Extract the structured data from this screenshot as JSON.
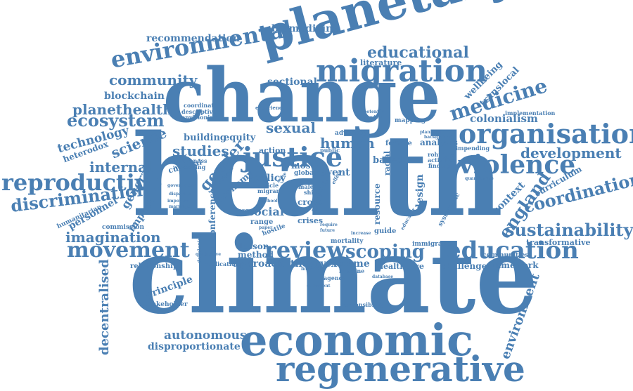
{
  "style": {
    "word_color": "#4a7fb3",
    "background": "#ffffff"
  },
  "words": {
    "climate": "climate",
    "health": "health",
    "change": "change",
    "planetary": "planetary",
    "economic": "economic",
    "regenerative": "regenerative",
    "migration": "migration",
    "organisation": "organisation",
    "justice": "justice",
    "violence": "violence",
    "review": "review",
    "education": "education",
    "scoping": "scoping",
    "movement": "movement",
    "sustainability": "sustainability",
    "reproductive": "reproductive",
    "environmental": "environmental",
    "discrimination": "discrimination",
    "ecosystem": "ecosystem",
    "medicine": "medicine",
    "development": "development",
    "coordination": "coordination",
    "educational": "educational",
    "england": "england",
    "community": "community",
    "planethealth": "planethealth",
    "imagination": "imagination",
    "studies": "studies",
    "gender": "gender",
    "sexual": "sexual",
    "human": "human",
    "internal": "internal",
    "science": "science",
    "technology": "technology",
    "environment": "environment",
    "decentralised": "decentralised",
    "autonomous": "autonomous",
    "disproportionate": "disproportionate",
    "recommendation": "recommendation",
    "biomedicine": "biomedicine",
    "blockchain": "blockchain",
    "sectional": "sectional",
    "literature": "literature",
    "wellbeing": "wellbeing",
    "translocal": "translocal",
    "colonialism": "colonialism",
    "heterodox": "heterodox",
    "general": "general",
    "personnel": "personnel",
    "impact": "impact",
    "humanitarian": "humanitarian",
    "commission": "commission",
    "context": "context",
    "curriculum": "curriculum",
    "transformative": "transformative",
    "framework": "framework",
    "challenge": "challenge",
    "healthcare": "healthcare",
    "extreme": "extreme",
    "approach": "approach",
    "theory": "theory",
    "lesson": "lesson",
    "method": "method",
    "relationship": "relationship",
    "principle": "principle",
    "stakeholder": "stakeholder",
    "unconference": "unconference",
    "economy": "economy",
    "policy": "policy",
    "social": "social",
    "building": "building",
    "equity": "equity",
    "event": "event",
    "based": "based",
    "female": "female",
    "analysis": "analysis",
    "mapping": "mapping",
    "design": "design",
    "resource": "resource",
    "guide": "guide",
    "immigration": "immigration",
    "communities": "communities",
    "mortality": "mortality",
    "cultural": "cultural",
    "action": "action",
    "person": "person",
    "cross": "cross",
    "crises": "crises",
    "range": "range",
    "hostile": "hostile",
    "implication": "implication",
    "coordinate": "coordinate",
    "descriptive": "descriptive",
    "envisioning": "envisioning",
    "awareness": "awareness",
    "worsening": "worsening",
    "implementation": "implementation",
    "impending": "impending",
    "advocacy": "advocacy",
    "racial": "racial",
    "public": "public",
    "systematic": "systematic",
    "rohingya": "rohingya",
    "activities": "activities",
    "finding": "finding",
    "responsibility": "responsibility",
    "agenda": "agenda",
    "imagine": "imagine",
    "article": "article",
    "migrant": "migrant",
    "most": "most",
    "global": "global",
    "male": "male",
    "shift": "shift",
    "woman": "woman",
    "experience": "experience",
    "potential": "potential",
    "shadow": "shadow",
    "planning": "planning",
    "background": "background",
    "quantitative": "quantitative",
    "qualitative": "qualitative",
    "developing": "developing",
    "financial": "financial",
    "database": "database",
    "document": "document",
    "educator": "educator",
    "marriage": "marriage",
    "important": "important",
    "government": "government",
    "disparate": "disparate",
    "school": "school",
    "move": "move",
    "different": "different",
    "effect": "effect",
    "require": "require",
    "future": "future",
    "increase": "increase",
    "paper": "paper"
  }
}
